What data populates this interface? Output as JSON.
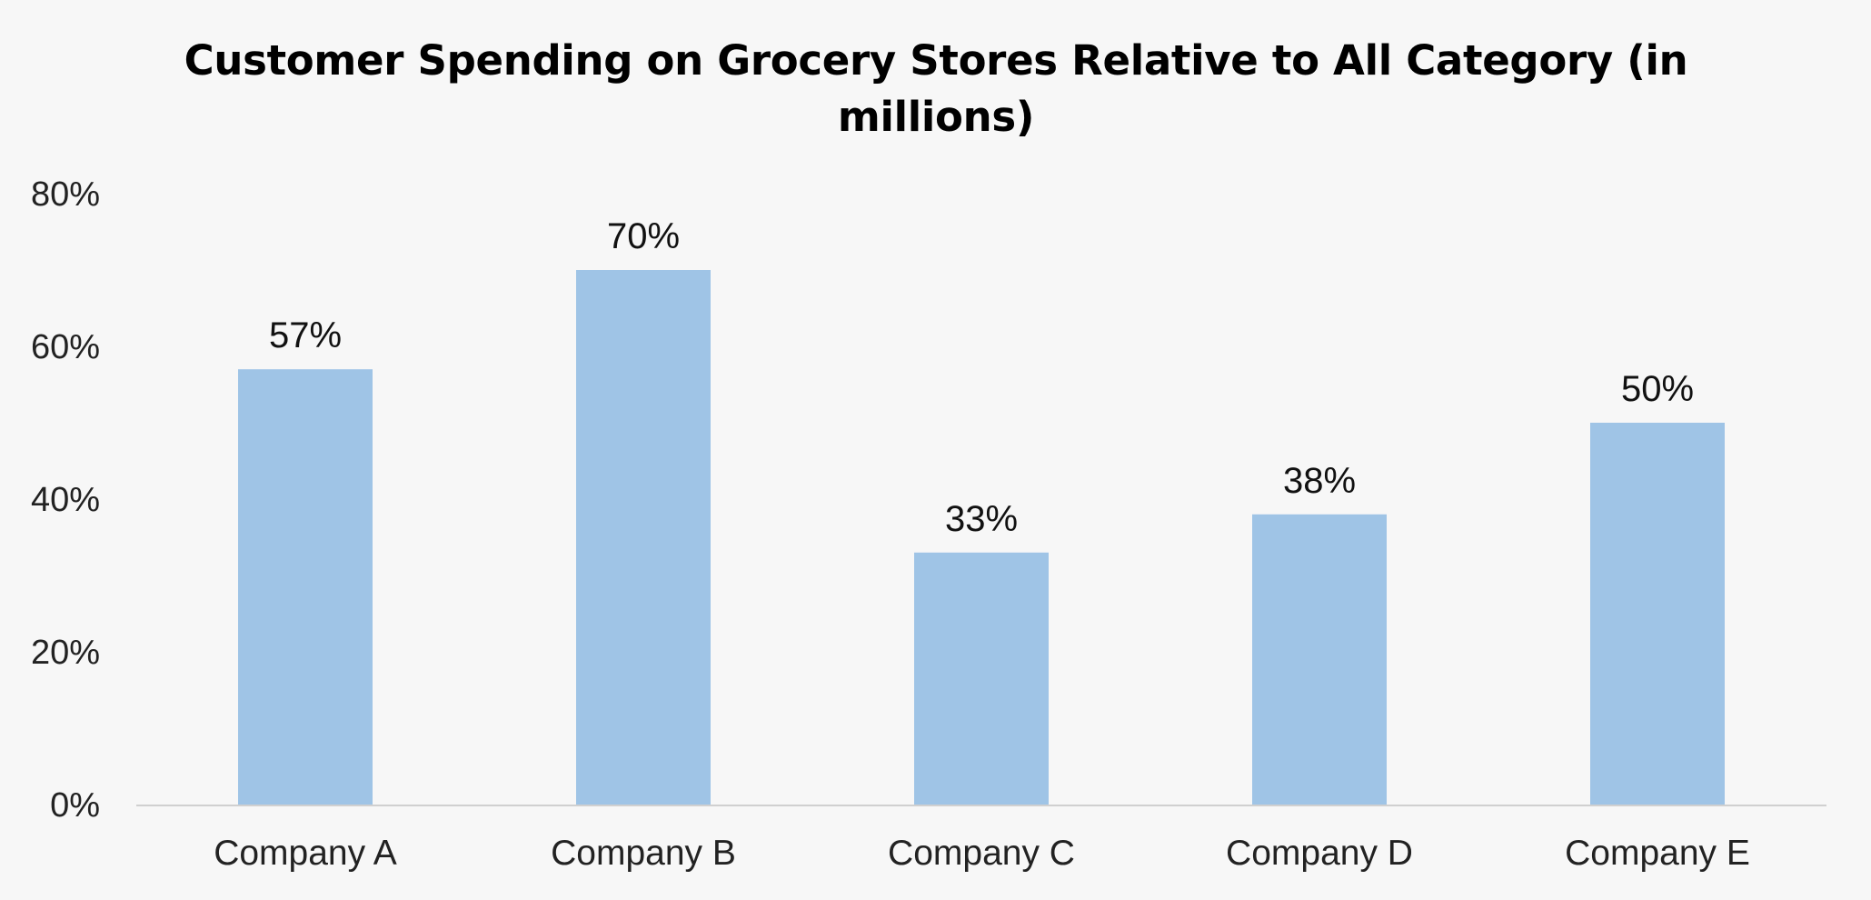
{
  "chart_data": {
    "type": "bar",
    "title": "Customer Spending on Grocery Stores Relative to All Category (in millions)",
    "xlabel": "",
    "ylabel": "",
    "categories": [
      "Company A",
      "Company B",
      "Company C",
      "Company D",
      "Company E"
    ],
    "values": [
      57,
      70,
      33,
      38,
      50
    ],
    "data_labels": [
      "57%",
      "70%",
      "33%",
      "38%",
      "50%"
    ],
    "y_ticks": [
      0,
      20,
      40,
      60,
      80
    ],
    "y_tick_labels": [
      "0%",
      "20%",
      "40%",
      "60%",
      "80%"
    ],
    "ylim": [
      0,
      80
    ],
    "grid": false,
    "legend": "none",
    "colors": {
      "bar": "#9fc4e6",
      "axis": "#d0d0d0",
      "background": "#f7f7f7"
    }
  }
}
